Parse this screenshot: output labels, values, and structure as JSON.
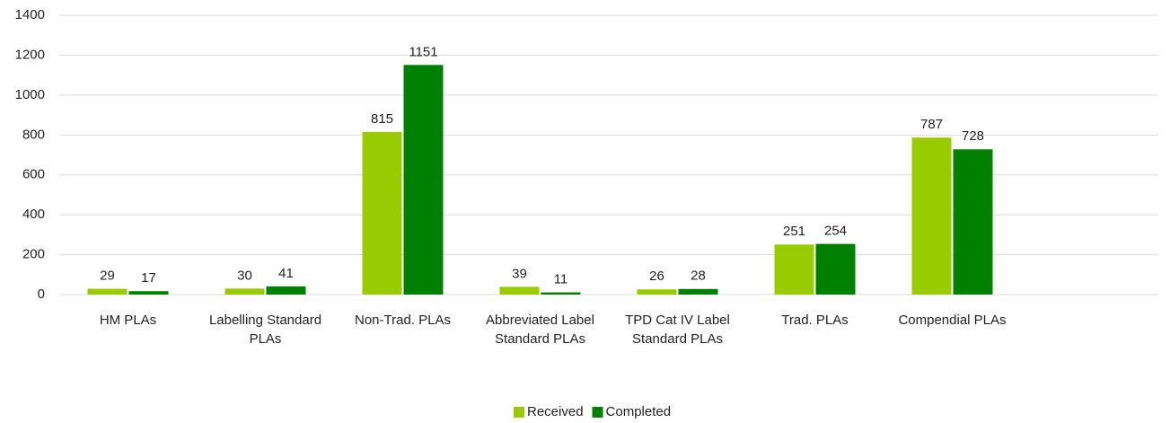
{
  "chart_data": {
    "type": "bar",
    "categories": [
      "HM PLAs",
      "Labelling Standard PLAs",
      "Non-Trad. PLAs",
      "Abbreviated Label Standard PLAs",
      "TPD Cat IV Label Standard PLAs",
      "Trad. PLAs",
      "Compendial PLAs",
      null
    ],
    "series": [
      {
        "name": "Received",
        "color": "#99cc00",
        "values": [
          29,
          30,
          815,
          39,
          26,
          251,
          787,
          null
        ]
      },
      {
        "name": "Completed",
        "color": "#008000",
        "values": [
          17,
          41,
          1151,
          11,
          28,
          254,
          728,
          null
        ]
      }
    ],
    "ylim": [
      0,
      1400
    ],
    "yticks": [
      0,
      200,
      400,
      600,
      800,
      1000,
      1200,
      1400
    ],
    "grid": true,
    "legend": "bottom"
  }
}
